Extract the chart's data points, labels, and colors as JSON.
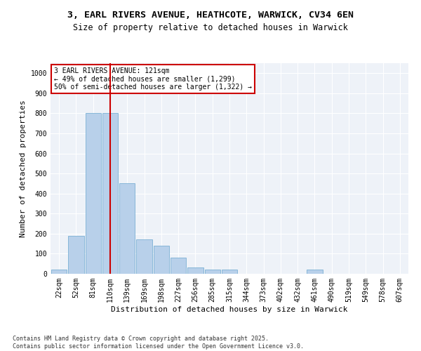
{
  "title_line1": "3, EARL RIVERS AVENUE, HEATHCOTE, WARWICK, CV34 6EN",
  "title_line2": "Size of property relative to detached houses in Warwick",
  "xlabel": "Distribution of detached houses by size in Warwick",
  "ylabel": "Number of detached properties",
  "bar_labels": [
    "22sqm",
    "52sqm",
    "81sqm",
    "110sqm",
    "139sqm",
    "169sqm",
    "198sqm",
    "227sqm",
    "256sqm",
    "285sqm",
    "315sqm",
    "344sqm",
    "373sqm",
    "402sqm",
    "432sqm",
    "461sqm",
    "490sqm",
    "519sqm",
    "549sqm",
    "578sqm",
    "607sqm"
  ],
  "bar_values": [
    20,
    190,
    800,
    800,
    450,
    170,
    140,
    80,
    30,
    20,
    20,
    0,
    0,
    0,
    0,
    20,
    0,
    0,
    0,
    0,
    0
  ],
  "bar_color": "#b8d0ea",
  "bar_edgecolor": "#7aafd4",
  "vline_x_index": 3,
  "vline_color": "#cc0000",
  "annotation_text": "3 EARL RIVERS AVENUE: 121sqm\n← 49% of detached houses are smaller (1,299)\n50% of semi-detached houses are larger (1,322) →",
  "annotation_box_edgecolor": "#cc0000",
  "background_color": "#eef2f8",
  "ylim": [
    0,
    1050
  ],
  "yticks": [
    0,
    100,
    200,
    300,
    400,
    500,
    600,
    700,
    800,
    900,
    1000
  ],
  "footer_text": "Contains HM Land Registry data © Crown copyright and database right 2025.\nContains public sector information licensed under the Open Government Licence v3.0.",
  "title_fontsize": 9.5,
  "subtitle_fontsize": 8.5,
  "axis_label_fontsize": 8,
  "tick_fontsize": 7,
  "annotation_fontsize": 7
}
